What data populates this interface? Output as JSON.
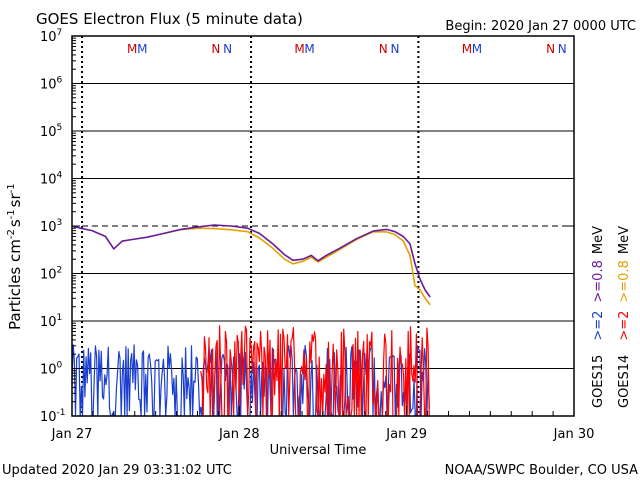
{
  "chart_data": {
    "type": "line",
    "title": "GOES Electron Flux (5 minute data)",
    "begin": "Begin: 2020 Jan 27 0000 UTC",
    "xlabel": "Universal Time",
    "ylabel": {
      "base": "Particles cm",
      "exp1": "-2",
      "s": "s",
      "exp2": "-1",
      "sr": "sr",
      "exp3": "-1"
    },
    "updated": "Updated 2020 Jan 29 03:31:02 UTC",
    "credit": "NOAA/SWPC Boulder, CO USA",
    "x_range_days": [
      0,
      3
    ],
    "x_ticks": [
      {
        "day": 0,
        "label": "Jan 27"
      },
      {
        "day": 1,
        "label": "Jan 28"
      },
      {
        "day": 2,
        "label": "Jan 29"
      },
      {
        "day": 3,
        "label": "Jan 30"
      }
    ],
    "y_scale": "log",
    "y_range": [
      0.1,
      10000000
    ],
    "y_ticks": [
      {
        "value": 10000000,
        "base": "10",
        "exp": "7"
      },
      {
        "value": 1000000,
        "base": "10",
        "exp": "6"
      },
      {
        "value": 100000,
        "base": "10",
        "exp": "5"
      },
      {
        "value": 10000,
        "base": "10",
        "exp": "4"
      },
      {
        "value": 1000,
        "base": "10",
        "exp": "3"
      },
      {
        "value": 100,
        "base": "10",
        "exp": "2"
      },
      {
        "value": 10,
        "base": "10",
        "exp": "1"
      },
      {
        "value": 1,
        "base": "10",
        "exp": "0"
      },
      {
        "value": 0.1,
        "base": "10",
        "exp": "-1"
      }
    ],
    "threshold": 1000,
    "markers": [
      {
        "day": 0.36,
        "text": "M",
        "color": "#cc0000"
      },
      {
        "day": 0.42,
        "text": "M",
        "color": "#1a3fd0"
      },
      {
        "day": 0.86,
        "text": "N",
        "color": "#cc0000"
      },
      {
        "day": 0.93,
        "text": "N",
        "color": "#1a3fd0"
      },
      {
        "day": 1.36,
        "text": "M",
        "color": "#cc0000"
      },
      {
        "day": 1.42,
        "text": "M",
        "color": "#1a3fd0"
      },
      {
        "day": 1.86,
        "text": "N",
        "color": "#cc0000"
      },
      {
        "day": 1.93,
        "text": "N",
        "color": "#1a3fd0"
      },
      {
        "day": 2.36,
        "text": "M",
        "color": "#cc0000"
      },
      {
        "day": 2.42,
        "text": "M",
        "color": "#1a3fd0"
      },
      {
        "day": 2.86,
        "text": "N",
        "color": "#cc0000"
      },
      {
        "day": 2.93,
        "text": "N",
        "color": "#1a3fd0"
      }
    ],
    "noon_lines_days": [
      0.06,
      1.07,
      2.07
    ],
    "legend": [
      {
        "sat": "GOES15",
        "low": ">=2",
        "high": ">=0.8",
        "unit": "MeV",
        "low_color": "#1a3fd0",
        "high_color": "#6a1b9a"
      },
      {
        "sat": "GOES14",
        "low": ">=2",
        "high": ">=0.8",
        "unit": "MeV",
        "low_color": "#ff0000",
        "high_color": "#e6a100"
      }
    ],
    "series": [
      {
        "name": "GOES15 >=0.8 MeV",
        "color": "#6a1b9a",
        "points": [
          [
            0.0,
            1000
          ],
          [
            0.05,
            900
          ],
          [
            0.12,
            800
          ],
          [
            0.2,
            600
          ],
          [
            0.25,
            330
          ],
          [
            0.3,
            480
          ],
          [
            0.36,
            520
          ],
          [
            0.45,
            580
          ],
          [
            0.55,
            700
          ],
          [
            0.65,
            850
          ],
          [
            0.75,
            950
          ],
          [
            0.85,
            1050
          ],
          [
            0.95,
            1000
          ],
          [
            1.05,
            900
          ],
          [
            1.12,
            700
          ],
          [
            1.2,
            420
          ],
          [
            1.27,
            250
          ],
          [
            1.32,
            190
          ],
          [
            1.38,
            200
          ],
          [
            1.43,
            240
          ],
          [
            1.47,
            185
          ],
          [
            1.52,
            240
          ],
          [
            1.6,
            340
          ],
          [
            1.7,
            540
          ],
          [
            1.8,
            780
          ],
          [
            1.88,
            850
          ],
          [
            1.93,
            760
          ],
          [
            1.98,
            600
          ],
          [
            2.02,
            420
          ],
          [
            2.05,
            160
          ],
          [
            2.08,
            75
          ],
          [
            2.11,
            45
          ],
          [
            2.14,
            32
          ]
        ]
      },
      {
        "name": "GOES14 >=0.8 MeV",
        "color": "#e6a100",
        "points": [
          [
            0.55,
            700
          ],
          [
            0.65,
            840
          ],
          [
            0.75,
            900
          ],
          [
            0.85,
            880
          ],
          [
            0.95,
            830
          ],
          [
            1.05,
            760
          ],
          [
            1.12,
            560
          ],
          [
            1.2,
            340
          ],
          [
            1.27,
            200
          ],
          [
            1.32,
            160
          ],
          [
            1.38,
            180
          ],
          [
            1.43,
            220
          ],
          [
            1.47,
            175
          ],
          [
            1.52,
            220
          ],
          [
            1.6,
            320
          ],
          [
            1.7,
            520
          ],
          [
            1.8,
            760
          ],
          [
            1.88,
            750
          ],
          [
            1.93,
            660
          ],
          [
            1.98,
            480
          ],
          [
            2.02,
            240
          ],
          [
            2.05,
            55
          ],
          [
            2.08,
            45
          ],
          [
            2.11,
            30
          ],
          [
            2.14,
            22
          ]
        ]
      },
      {
        "name": "GOES15 >=2 MeV",
        "color": "#1a3fd0",
        "x_start": 0.0,
        "x_end": 2.14,
        "step": 0.007,
        "log_range": [
          -1.0,
          0.5
        ]
      },
      {
        "name": "GOES14 >=2 MeV",
        "color": "#ff0000",
        "x_start": 0.77,
        "x_end": 2.14,
        "step": 0.007,
        "log_range": [
          -1.0,
          0.9
        ]
      }
    ]
  }
}
